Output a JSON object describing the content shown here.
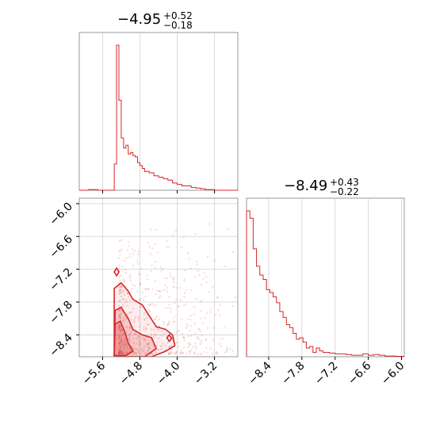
{
  "chart_data": {
    "type": "corner",
    "color": "#d62728",
    "panels": {
      "hist_x": {
        "title": {
          "median": "−4.95",
          "plus": "+0.52",
          "minus": "−0.18"
        },
        "xlim": [
          -6.1,
          -2.7
        ],
        "bin_edges": [
          -6.1,
          -6.0,
          -5.9,
          -5.8,
          -5.7,
          -5.6,
          -5.5,
          -5.45,
          -5.4,
          -5.35,
          -5.3,
          -5.25,
          -5.2,
          -5.15,
          -5.1,
          -5.05,
          -5.0,
          -4.95,
          -4.9,
          -4.85,
          -4.8,
          -4.75,
          -4.7,
          -4.6,
          -4.5,
          -4.4,
          -4.3,
          -4.2,
          -4.1,
          -4.0,
          -3.9,
          -3.8,
          -3.7,
          -3.6,
          -3.5,
          -3.4,
          -3.3,
          -3.2,
          -3.1,
          -3.0,
          -2.9,
          -2.8,
          -2.7
        ],
        "counts": [
          0,
          0,
          0.5,
          0.5,
          0,
          0,
          0,
          0,
          0,
          18,
          100,
          62,
          36,
          29,
          31,
          25,
          26,
          24,
          23,
          19,
          17,
          15,
          13,
          12,
          10,
          9,
          8,
          7,
          5,
          4,
          3,
          3,
          2,
          1.5,
          1,
          0.5,
          0.5,
          0,
          0,
          0,
          0,
          0
        ]
      },
      "hist_y": {
        "title": {
          "median": "−8.49",
          "plus": "+0.43",
          "minus": "−0.22"
        },
        "xlim": [
          -8.8,
          -5.95
        ],
        "bin_edges": [
          -8.8,
          -8.74,
          -8.68,
          -8.62,
          -8.56,
          -8.5,
          -8.44,
          -8.38,
          -8.32,
          -8.26,
          -8.2,
          -8.14,
          -8.08,
          -8.02,
          -7.96,
          -7.9,
          -7.84,
          -7.78,
          -7.72,
          -7.66,
          -7.6,
          -7.54,
          -7.48,
          -7.42,
          -7.36,
          -7.3,
          -7.2,
          -7.1,
          -7.0,
          -6.9,
          -6.8,
          -6.7,
          -6.6,
          -6.5,
          -6.4,
          -6.3,
          -6.2,
          -6.1,
          -5.95
        ],
        "counts": [
          100,
          95,
          74,
          62,
          56,
          53,
          46,
          44,
          41,
          37,
          31,
          27,
          22,
          20,
          16,
          12,
          13,
          10,
          6,
          7,
          3,
          6,
          4,
          3,
          3,
          2.5,
          2,
          2,
          1.5,
          1,
          1,
          2,
          1,
          1.5,
          1,
          0.5,
          0.5,
          0.3
        ]
      },
      "scatter": {
        "xlim": [
          -6.1,
          -2.7
        ],
        "ylim": [
          -8.8,
          -5.9
        ],
        "xticks": [
          -5.6,
          -4.8,
          -4.0,
          -3.2
        ],
        "yticks": [
          -6.0,
          -6.6,
          -7.2,
          -7.8,
          -8.4
        ],
        "xtick_labels": [
          "−5.6",
          "−4.8",
          "−4.0",
          "−3.2"
        ],
        "ytick_labels": [
          "−6.0",
          "−6.6",
          "−7.2",
          "−7.8",
          "−8.4"
        ],
        "hist_x_tick_labels": [],
        "hist_y_xticks": [
          -8.4,
          -7.8,
          -7.2,
          -6.6,
          -6.0
        ],
        "hist_y_tick_labels": [
          "−8.4",
          "−7.8",
          "−7.2",
          "−6.6",
          "−6.0"
        ],
        "n_points": 650,
        "grid": true
      }
    }
  }
}
